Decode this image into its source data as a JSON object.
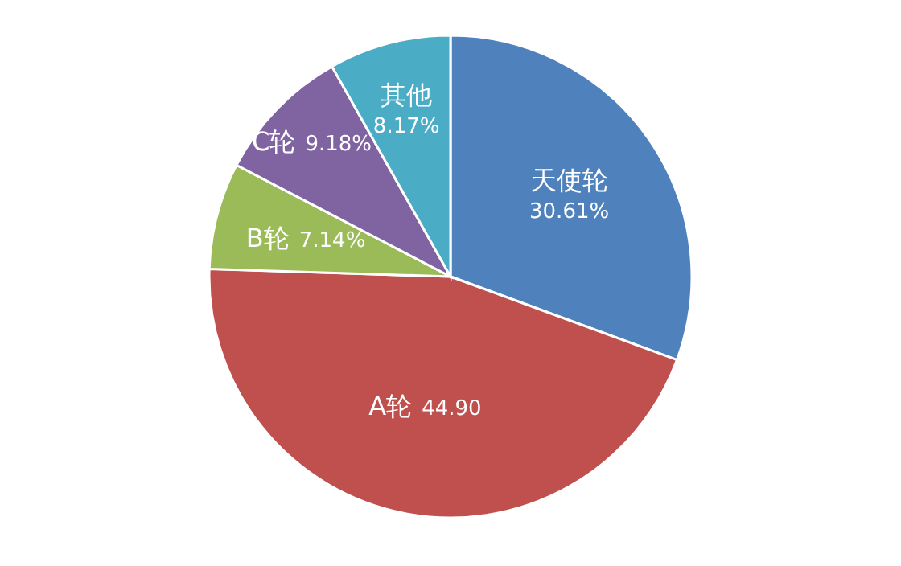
{
  "chart_data": {
    "type": "pie",
    "categories": [
      "天使轮",
      "A轮",
      "B轮",
      "C轮",
      "其他"
    ],
    "values": [
      30.61,
      44.9,
      7.14,
      9.18,
      8.17
    ],
    "value_labels": [
      "30.61%",
      "44.90",
      "7.14%",
      "9.18%",
      "8.17%"
    ],
    "colors": [
      "#4f81bd",
      "#c0504d",
      "#9bbb59",
      "#8064a2",
      "#4bacc6"
    ]
  }
}
